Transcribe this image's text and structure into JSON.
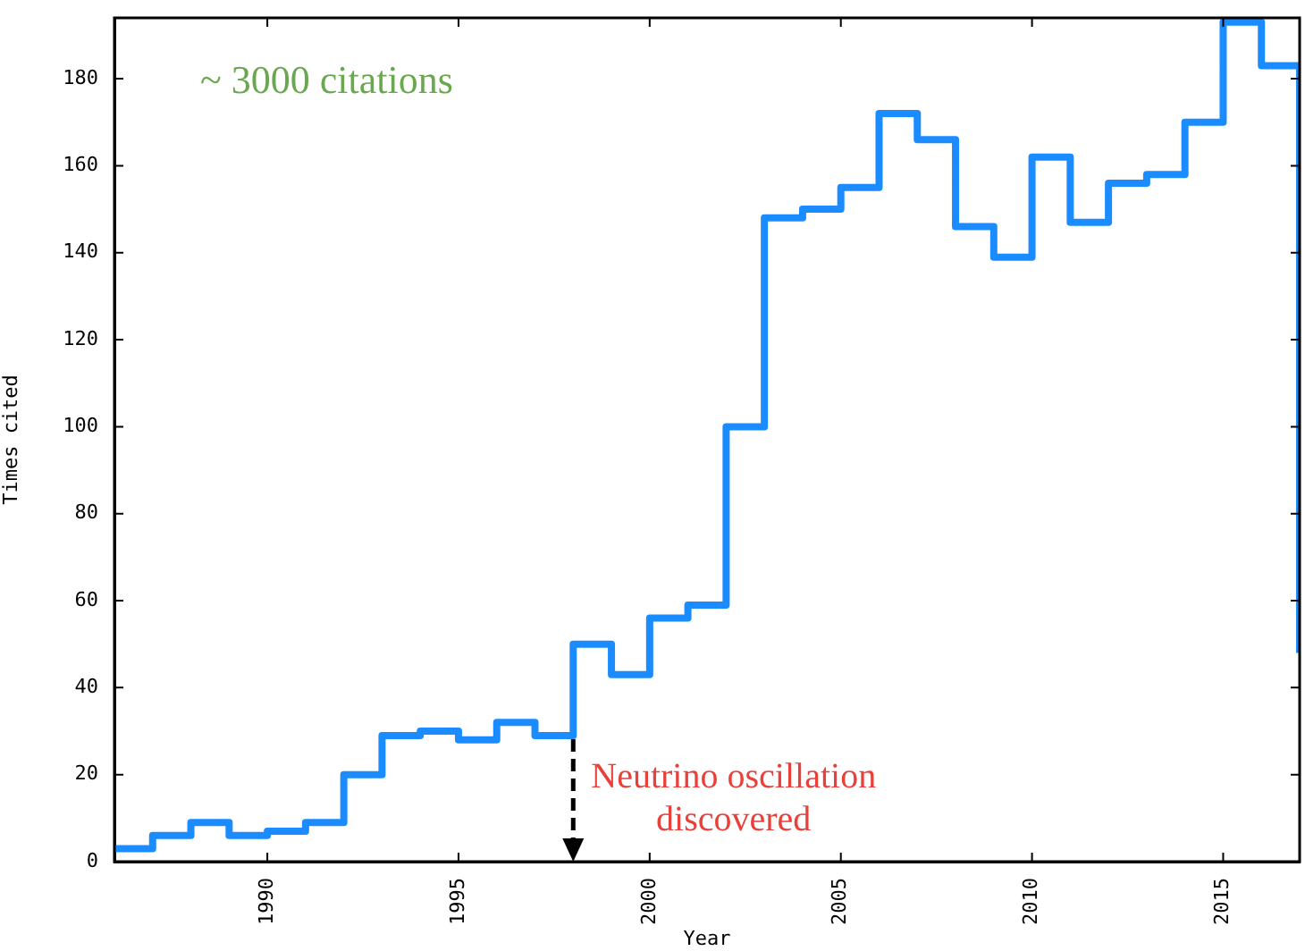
{
  "chart_data": {
    "type": "step",
    "xlabel": "Year",
    "ylabel": "Times cited",
    "x": [
      1986,
      1987,
      1988,
      1989,
      1990,
      1991,
      1992,
      1993,
      1994,
      1995,
      1996,
      1997,
      1998,
      1999,
      2000,
      2001,
      2002,
      2003,
      2004,
      2005,
      2006,
      2007,
      2008,
      2009,
      2010,
      2011,
      2012,
      2013,
      2014,
      2015,
      2016,
      2017
    ],
    "series": [
      {
        "color": "#1a8cff",
        "values": [
          3,
          6,
          9,
          6,
          7,
          9,
          20,
          29,
          30,
          28,
          32,
          29,
          50,
          43,
          56,
          59,
          100,
          148,
          150,
          155,
          172,
          166,
          146,
          139,
          162,
          147,
          156,
          158,
          170,
          193,
          183,
          48
        ]
      }
    ],
    "xlim": [
      1986,
      2017
    ],
    "xticks": [
      1990,
      1995,
      2000,
      2005,
      2010,
      2015
    ],
    "ylim": [
      0,
      194
    ],
    "yticks": [
      0,
      20,
      40,
      60,
      80,
      100,
      120,
      140,
      160,
      180
    ],
    "grid": false,
    "legend": false,
    "marker": "none",
    "line_style": "solid",
    "annotations": [
      "~ 3000 citations",
      {
        "text": "Neutrino oscillation\ndiscovered",
        "x": 1998,
        "y": 29
      }
    ]
  }
}
